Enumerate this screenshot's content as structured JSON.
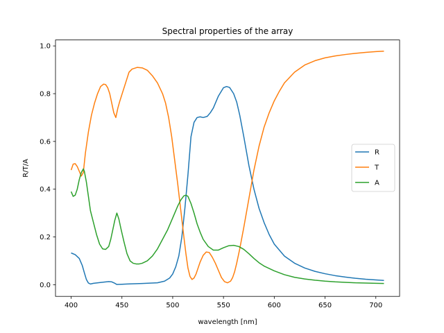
{
  "chart_data": {
    "type": "line",
    "title": "Spectral properties of the array",
    "xlabel": "wavelength [nm]",
    "ylabel": "R/T/A",
    "xlim": [
      384.6,
      723.4
    ],
    "ylim": [
      -0.0488,
      1.0249
    ],
    "xticks": [
      400,
      450,
      500,
      550,
      600,
      650,
      700
    ],
    "xtick_labels": [
      "400",
      "450",
      "500",
      "550",
      "600",
      "650",
      "700"
    ],
    "yticks": [
      0.0,
      0.2,
      0.4,
      0.6,
      0.8,
      1.0
    ],
    "ytick_labels": [
      "0.0",
      "0.2",
      "0.4",
      "0.6",
      "0.8",
      "1.0"
    ],
    "grid": false,
    "legend_position": "center-right",
    "series": [
      {
        "name": "R",
        "color": "#1f77b4",
        "x": [
          400,
          404,
          408,
          411,
          413,
          415,
          417,
          419,
          422,
          430,
          437,
          440,
          443,
          445,
          450,
          455,
          470,
          485,
          492,
          497,
          500,
          503,
          506,
          509,
          512,
          515,
          518,
          521,
          524,
          527,
          530,
          534,
          537,
          540,
          545,
          550,
          553,
          556,
          560,
          563,
          566,
          570,
          575,
          580,
          585,
          590,
          595,
          600,
          610,
          620,
          630,
          640,
          650,
          660,
          670,
          680,
          690,
          700,
          708
        ],
        "values": [
          0.133,
          0.126,
          0.11,
          0.08,
          0.05,
          0.022,
          0.007,
          0.003,
          0.006,
          0.01,
          0.013,
          0.012,
          0.006,
          0.001,
          0.002,
          0.003,
          0.005,
          0.008,
          0.015,
          0.028,
          0.045,
          0.075,
          0.12,
          0.2,
          0.32,
          0.46,
          0.62,
          0.68,
          0.7,
          0.703,
          0.7,
          0.705,
          0.72,
          0.74,
          0.79,
          0.825,
          0.83,
          0.826,
          0.8,
          0.765,
          0.71,
          0.62,
          0.5,
          0.4,
          0.32,
          0.26,
          0.21,
          0.17,
          0.12,
          0.09,
          0.07,
          0.056,
          0.046,
          0.038,
          0.032,
          0.027,
          0.023,
          0.02,
          0.018
        ]
      },
      {
        "name": "T",
        "color": "#ff7f0e",
        "x": [
          400,
          402,
          404,
          406,
          408,
          410,
          412,
          414,
          417,
          420,
          423,
          426,
          429,
          432,
          434,
          436,
          438,
          440,
          442,
          444,
          446,
          448,
          451,
          454,
          457,
          460,
          465,
          470,
          475,
          480,
          485,
          490,
          493,
          496,
          499,
          502,
          505,
          508,
          511,
          513,
          515,
          517,
          519,
          521,
          523,
          525,
          527,
          530,
          533,
          536,
          539,
          542,
          545,
          548,
          551,
          554,
          557,
          559,
          561,
          563,
          566,
          570,
          575,
          580,
          585,
          590,
          595,
          600,
          605,
          610,
          620,
          630,
          640,
          650,
          660,
          670,
          680,
          690,
          700,
          708
        ],
        "values": [
          0.48,
          0.505,
          0.507,
          0.495,
          0.475,
          0.455,
          0.47,
          0.55,
          0.64,
          0.71,
          0.76,
          0.8,
          0.83,
          0.84,
          0.838,
          0.825,
          0.8,
          0.76,
          0.72,
          0.7,
          0.74,
          0.77,
          0.81,
          0.85,
          0.89,
          0.903,
          0.91,
          0.908,
          0.898,
          0.875,
          0.845,
          0.8,
          0.76,
          0.7,
          0.62,
          0.52,
          0.42,
          0.31,
          0.2,
          0.13,
          0.07,
          0.035,
          0.022,
          0.028,
          0.045,
          0.07,
          0.095,
          0.123,
          0.137,
          0.135,
          0.115,
          0.09,
          0.06,
          0.03,
          0.013,
          0.008,
          0.015,
          0.03,
          0.055,
          0.09,
          0.15,
          0.24,
          0.36,
          0.48,
          0.58,
          0.66,
          0.72,
          0.77,
          0.81,
          0.845,
          0.89,
          0.92,
          0.938,
          0.95,
          0.958,
          0.964,
          0.969,
          0.973,
          0.976,
          0.978
        ]
      },
      {
        "name": "A",
        "color": "#2ca02c",
        "x": [
          400,
          402,
          404,
          406,
          408,
          410,
          412,
          413,
          415,
          417,
          419,
          422,
          425,
          428,
          431,
          434,
          437,
          439,
          441,
          443,
          445,
          447,
          449,
          452,
          455,
          458,
          461,
          464,
          467,
          470,
          475,
          480,
          485,
          490,
          495,
          500,
          505,
          508,
          511,
          513,
          515,
          518,
          521,
          524,
          527,
          530,
          535,
          540,
          545,
          550,
          555,
          560,
          565,
          570,
          575,
          580,
          585,
          590,
          600,
          610,
          620,
          630,
          640,
          650,
          660,
          670,
          680,
          690,
          700,
          708
        ],
        "values": [
          0.39,
          0.37,
          0.375,
          0.4,
          0.44,
          0.47,
          0.485,
          0.475,
          0.43,
          0.37,
          0.31,
          0.26,
          0.21,
          0.17,
          0.15,
          0.148,
          0.16,
          0.19,
          0.23,
          0.27,
          0.3,
          0.275,
          0.235,
          0.18,
          0.13,
          0.1,
          0.09,
          0.087,
          0.087,
          0.09,
          0.1,
          0.12,
          0.15,
          0.19,
          0.23,
          0.28,
          0.33,
          0.355,
          0.372,
          0.375,
          0.37,
          0.34,
          0.3,
          0.255,
          0.22,
          0.19,
          0.16,
          0.145,
          0.145,
          0.155,
          0.163,
          0.165,
          0.16,
          0.148,
          0.13,
          0.11,
          0.092,
          0.078,
          0.058,
          0.042,
          0.031,
          0.024,
          0.019,
          0.015,
          0.012,
          0.01,
          0.008,
          0.007,
          0.006,
          0.005
        ]
      }
    ]
  }
}
